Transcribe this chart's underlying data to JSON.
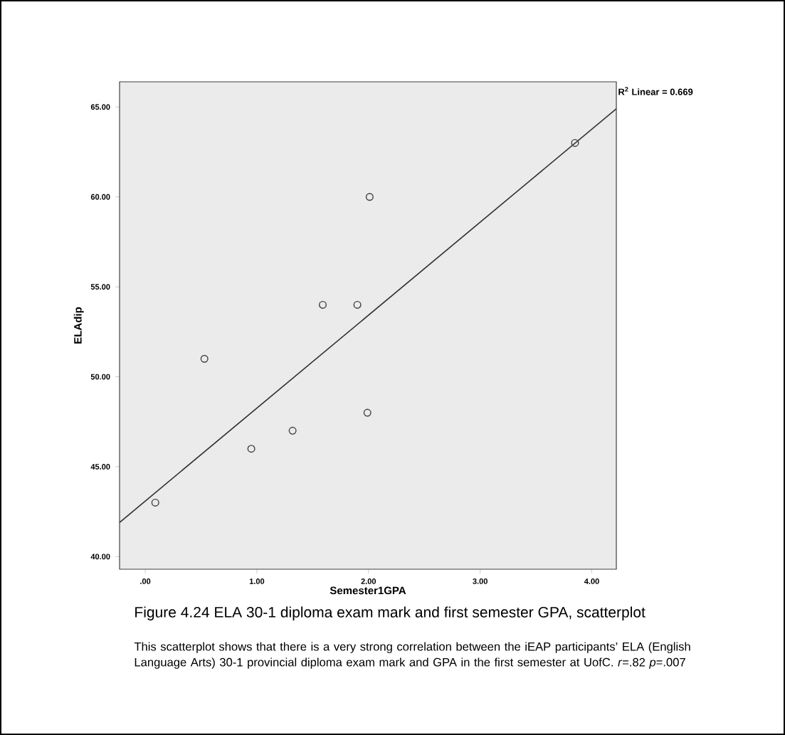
{
  "chart_data": {
    "type": "scatter",
    "xlabel": "Semester1GPA",
    "ylabel": "ELAdip",
    "xlim": [
      -0.23,
      4.22
    ],
    "ylim": [
      39.3,
      66.4
    ],
    "xticks": [
      {
        "value": 0,
        "label": ".00"
      },
      {
        "value": 1,
        "label": "1.00"
      },
      {
        "value": 2,
        "label": "2.00"
      },
      {
        "value": 3,
        "label": "3.00"
      },
      {
        "value": 4,
        "label": "4.00"
      }
    ],
    "yticks": [
      {
        "value": 40,
        "label": "40.00"
      },
      {
        "value": 45,
        "label": "45.00"
      },
      {
        "value": 50,
        "label": "50.00"
      },
      {
        "value": 55,
        "label": "55.00"
      },
      {
        "value": 60,
        "label": "60.00"
      },
      {
        "value": 65,
        "label": "65.00"
      }
    ],
    "grid": false,
    "series": [
      {
        "marker": "circle",
        "color": "#404040",
        "x": [
          0.09,
          0.53,
          0.95,
          1.32,
          1.59,
          1.9,
          1.99,
          2.01,
          3.85
        ],
        "values": [
          43,
          51,
          46,
          47,
          54,
          54,
          48,
          60,
          63
        ]
      },
      {
        "type": "line",
        "marker": "none",
        "color": "#333333",
        "x": [
          -0.23,
          4.22
        ],
        "values": [
          41.9,
          64.9
        ]
      }
    ],
    "annotations": [
      "R$^{2}$ Linear = 0.669",
      "Figure 4.24 ELA 30-1 diploma exam mark and first semester GPA, scatterplot",
      "This scatterplot shows that there is a very strong correlation between the iEAP participants’ ELA (English Language Arts) 30-1 provincial diploma exam mark and GPA in the first semester at UofC. *r*=.82 *p*=.007"
    ]
  }
}
